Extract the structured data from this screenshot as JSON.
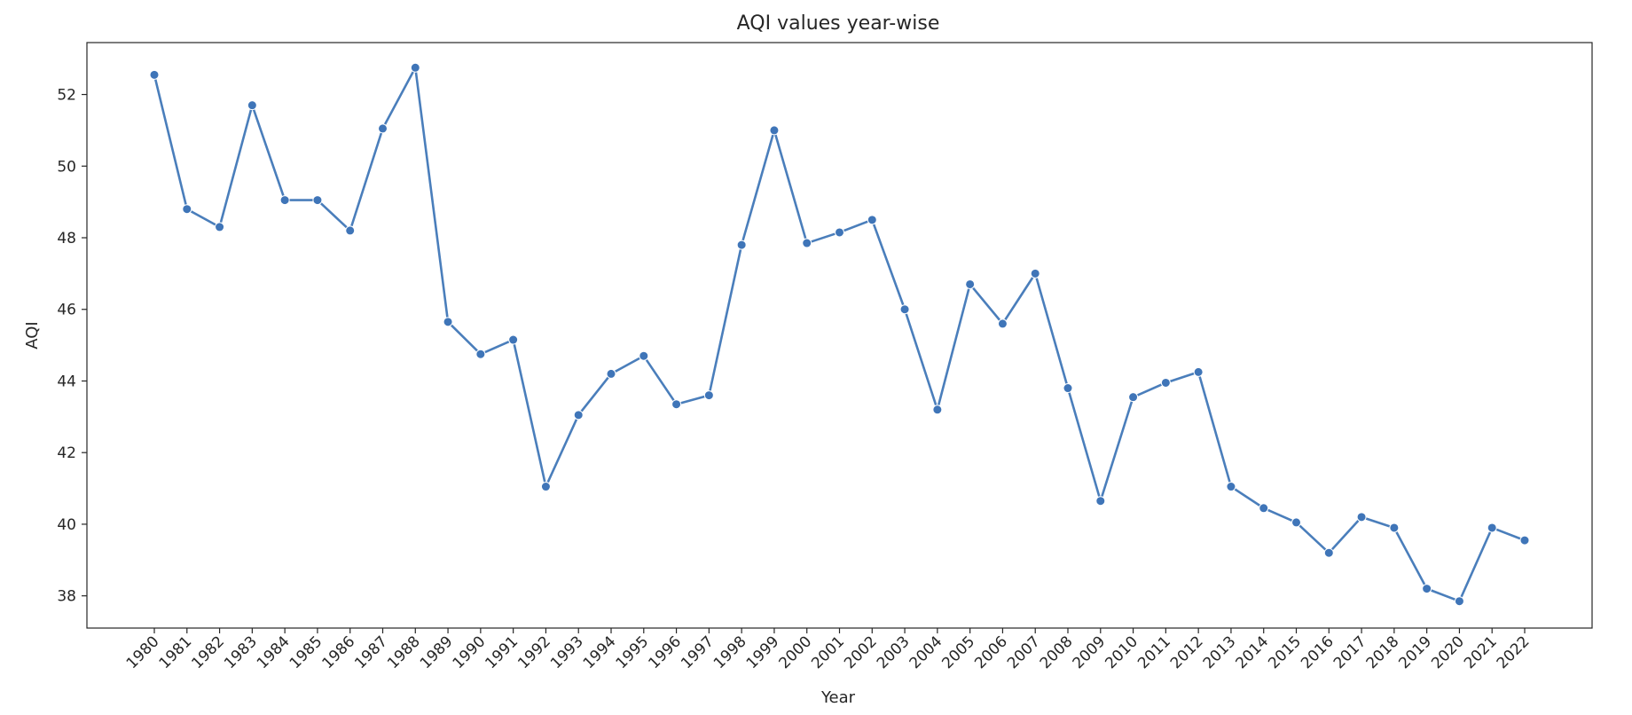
{
  "chart_data": {
    "type": "line",
    "title": "AQI values year-wise",
    "xlabel": "Year",
    "ylabel": "AQI",
    "ylim": [
      37.1,
      53.45
    ],
    "yticks": [
      38,
      40,
      42,
      44,
      46,
      48,
      50,
      52
    ],
    "grid": false,
    "legend": "none",
    "colors": {
      "line": "#4a7ebb",
      "marker": "#3f75b8",
      "axis": "#262626"
    },
    "x": [
      "1980",
      "1981",
      "1982",
      "1983",
      "1984",
      "1985",
      "1986",
      "1987",
      "1988",
      "1989",
      "1990",
      "1991",
      "1992",
      "1993",
      "1994",
      "1995",
      "1996",
      "1997",
      "1998",
      "1999",
      "2000",
      "2001",
      "2002",
      "2003",
      "2004",
      "2005",
      "2006",
      "2007",
      "2008",
      "2009",
      "2010",
      "2011",
      "2012",
      "2013",
      "2014",
      "2015",
      "2016",
      "2017",
      "2018",
      "2019",
      "2020",
      "2021",
      "2022"
    ],
    "values": [
      52.55,
      48.8,
      48.3,
      51.7,
      49.05,
      49.05,
      48.2,
      51.05,
      52.75,
      45.65,
      44.75,
      45.15,
      41.05,
      43.05,
      44.2,
      44.7,
      43.35,
      43.6,
      47.8,
      51.0,
      47.85,
      48.15,
      48.5,
      46.0,
      43.2,
      46.7,
      45.6,
      47.0,
      43.8,
      40.65,
      43.55,
      43.95,
      44.25,
      41.05,
      40.45,
      40.05,
      39.2,
      40.2,
      39.9,
      38.2,
      37.85,
      39.9,
      39.55
    ]
  }
}
